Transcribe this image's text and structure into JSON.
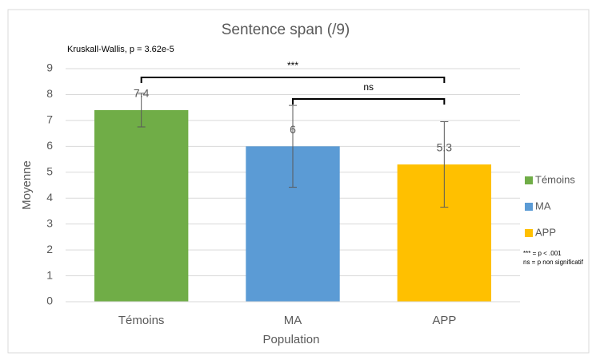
{
  "chart_data": {
    "type": "bar",
    "title": "Sentence span (/9)",
    "subtitle": "Kruskall-Wallis, p = 3.62e-5",
    "xlabel": "Population",
    "ylabel": "Moyenne",
    "categories": [
      "Témoins",
      "MA",
      "APP"
    ],
    "values": [
      7.4,
      6,
      5.3
    ],
    "errors": [
      0.65,
      1.58,
      1.65
    ],
    "colors": [
      "#70ad47",
      "#5b9bd5",
      "#ffc000"
    ],
    "ylim": [
      0,
      9
    ],
    "yticks": [
      0,
      1,
      2,
      3,
      4,
      5,
      6,
      7,
      8,
      9
    ],
    "grid": true,
    "comparisons": [
      {
        "from": 0,
        "to": 2,
        "label": "***"
      },
      {
        "from": 1,
        "to": 2,
        "label": "ns"
      }
    ],
    "notes": [
      "*** = p < .001",
      "ns = p non significatif"
    ]
  }
}
